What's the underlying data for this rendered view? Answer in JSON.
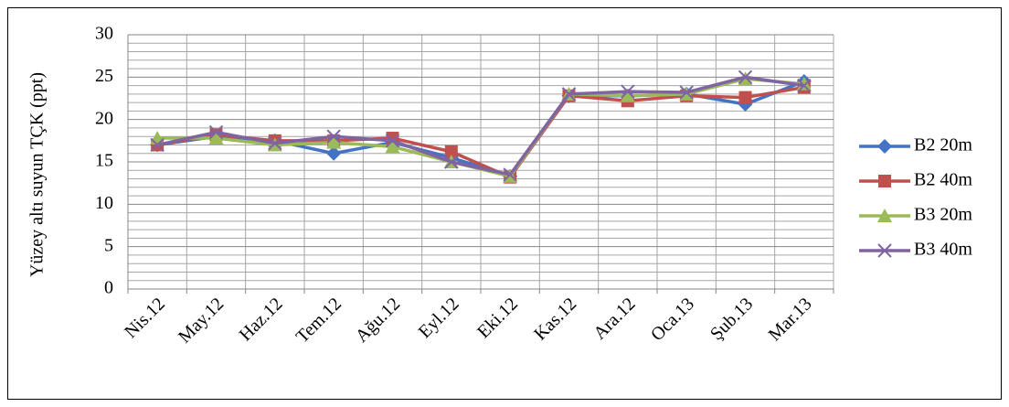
{
  "chart_data": {
    "type": "line",
    "ylabel": "Yüzey altı suyun  TÇK (ppt)",
    "categories": [
      "Nis.12",
      "May.12",
      "Haz.12",
      "Tem.12",
      "Ağu.12",
      "Eyl.12",
      "Eki.12",
      "Kas.12",
      "Ara.12",
      "Oca.13",
      "Şub.13",
      "Mar.13"
    ],
    "series": [
      {
        "name": "B2 20m",
        "color": "#4472c4",
        "marker": "diamond",
        "values": [
          17,
          18,
          17.5,
          16,
          17.3,
          15.5,
          13.3,
          22.8,
          22.8,
          23,
          21.8,
          24.5
        ]
      },
      {
        "name": "B2 40m",
        "color": "#c0504d",
        "marker": "square",
        "values": [
          17,
          18.2,
          17.5,
          17.5,
          17.8,
          16.2,
          13.2,
          22.8,
          22.2,
          22.8,
          22.6,
          23.8
        ]
      },
      {
        "name": "B3 20m",
        "color": "#9bbb59",
        "marker": "triangle",
        "values": [
          17.8,
          17.8,
          17,
          17.3,
          16.8,
          15,
          13.3,
          23,
          22.8,
          23,
          24.8,
          24.2
        ]
      },
      {
        "name": "B3 40m",
        "color": "#8064a2",
        "marker": "x",
        "values": [
          17,
          18.5,
          17.2,
          18,
          17.5,
          15,
          13.5,
          23,
          23.3,
          23.2,
          25,
          24
        ]
      }
    ],
    "ylim": [
      0,
      30
    ],
    "yticks": [
      0,
      5,
      10,
      15,
      20,
      25,
      30
    ],
    "minor_yticks": [
      1,
      2,
      3,
      4,
      6,
      7,
      8,
      9,
      11,
      12,
      13,
      14,
      16,
      17,
      18,
      19,
      21,
      22,
      23,
      24,
      26,
      27,
      28,
      29
    ],
    "grid": true,
    "legend": "right"
  }
}
